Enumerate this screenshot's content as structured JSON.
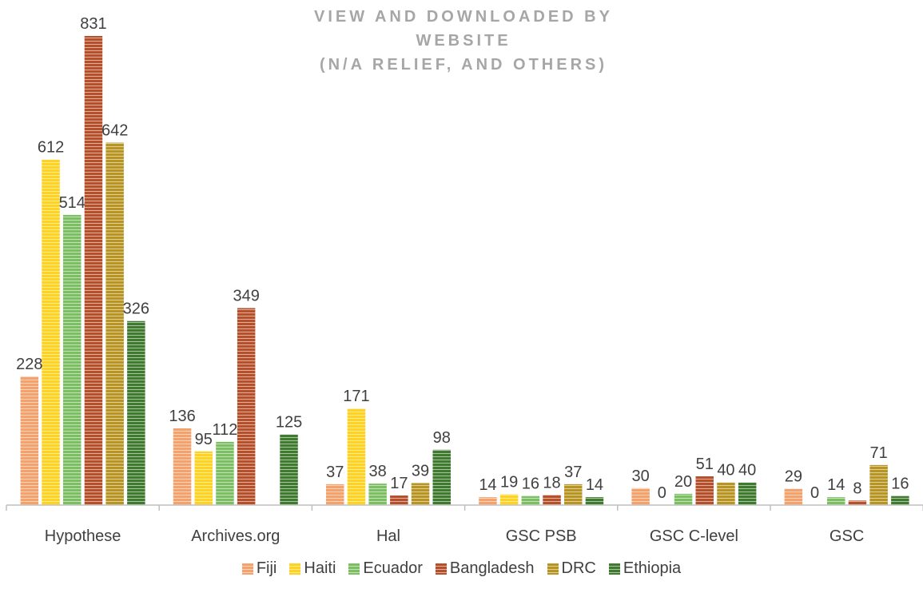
{
  "chart_data": {
    "type": "bar",
    "title_line1": "VIEW AND DOWNLOADED BY WEBSITE",
    "title_line2": "(N/A RELIEF, AND OTHERS)",
    "xlabel": "",
    "ylabel": "",
    "ylim": [
      0,
      831
    ],
    "grid": false,
    "legend_position": "bottom",
    "categories": [
      "Hypothese",
      "Archives.org",
      "Hal",
      "GSC PSB",
      "GSC C-level",
      "GSC"
    ],
    "series": [
      {
        "name": "Fiji",
        "color": "#f4a16b",
        "values": [
          228,
          136,
          37,
          14,
          30,
          29
        ],
        "labels": [
          "228",
          "136",
          "37",
          "14",
          "30",
          "29"
        ]
      },
      {
        "name": "Haiti",
        "color": "#ffd21f",
        "values": [
          612,
          95,
          171,
          19,
          0,
          0
        ],
        "labels": [
          "612",
          "95",
          "171",
          "19",
          "0",
          "0"
        ]
      },
      {
        "name": "Ecuador",
        "color": "#7cbf63",
        "values": [
          514,
          112,
          38,
          16,
          20,
          14
        ],
        "labels": [
          "514",
          "112",
          "38",
          "16",
          "20",
          "14"
        ]
      },
      {
        "name": "Bangladesh",
        "color": "#b5502a",
        "values": [
          831,
          349,
          17,
          18,
          51,
          8
        ],
        "labels": [
          "831",
          "349",
          "17",
          "18",
          "51",
          "8"
        ]
      },
      {
        "name": "DRC",
        "color": "#b89422",
        "values": [
          642,
          0,
          39,
          37,
          40,
          71
        ],
        "labels": [
          "642",
          "",
          "39",
          "37",
          "40",
          "71"
        ]
      },
      {
        "name": "Ethiopia",
        "color": "#3f7a2f",
        "values": [
          326,
          125,
          98,
          14,
          40,
          16
        ],
        "labels": [
          "326",
          "125",
          "98",
          "14",
          "40",
          "16"
        ]
      }
    ]
  }
}
